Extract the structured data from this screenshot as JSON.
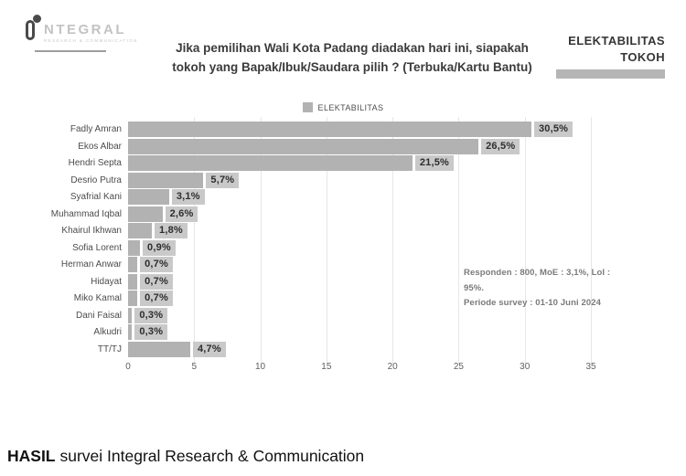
{
  "header": {
    "logo_word": "NTEGRAL",
    "logo_subtext": "RESEARCH & COMMUNICATION",
    "right_label_line1": "ELEKTABILITAS",
    "right_label_line2": "TOKOH"
  },
  "chart_data": {
    "type": "bar",
    "orientation": "horizontal",
    "title": "Jika pemilihan Wali Kota Padang diadakan hari ini, siapakah tokoh yang Bapak/Ibuk/Saudara pilih ? (Terbuka/Kartu Bantu)",
    "title_lines": [
      "Jika pemilihan Wali Kota Padang diadakan hari ini, siapakah",
      "tokoh yang Bapak/Ibuk/Saudara pilih ? (Terbuka/Kartu Bantu)"
    ],
    "legend": [
      "ELEKTABILITAS"
    ],
    "legend_position": "top",
    "categories": [
      "Fadly Amran",
      "Ekos Albar",
      "Hendri Septa",
      "Desrio Putra",
      "Syafrial Kani",
      "Muhammad Iqbal",
      "Khairul Ikhwan",
      "Sofia Lorent",
      "Herman Anwar",
      "Hidayat",
      "Miko Kamal",
      "Dani Faisal",
      "Alkudri",
      "TT/TJ"
    ],
    "values": [
      30.5,
      26.5,
      21.5,
      5.7,
      3.1,
      2.6,
      1.8,
      0.9,
      0.7,
      0.7,
      0.7,
      0.3,
      0.3,
      4.7
    ],
    "value_labels": [
      "30,5%",
      "26,5%",
      "21,5%",
      "5,7%",
      "3,1%",
      "2,6%",
      "1,8%",
      "0,9%",
      "0,7%",
      "0,7%",
      "0,7%",
      "0,3%",
      "0,3%",
      "4,7%"
    ],
    "x_ticks": [
      0,
      5,
      10,
      15,
      20,
      25,
      30,
      35
    ],
    "xlim": [
      0,
      35
    ],
    "grid": true,
    "annotation_lines": [
      "Responden : 800, MoE : 3,1%, LoI : 95%.",
      "Periode survey : 01-10 Juni 2024"
    ],
    "colors": {
      "bar": "#b2b2b2",
      "value_label_bg": "#c9c9c9",
      "header_bar": "#b5b5b5"
    }
  },
  "footer": {
    "caption_bold": "HASIL",
    "caption_rest": "survei Integral Research & Communication"
  }
}
